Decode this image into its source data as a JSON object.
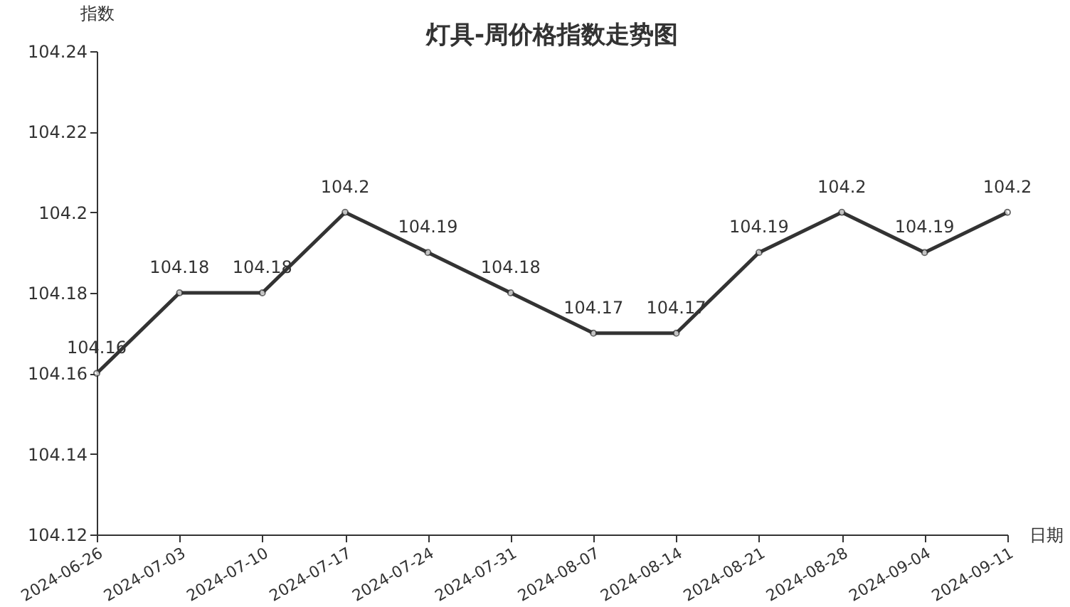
{
  "chart_data": {
    "type": "line",
    "title": "灯具-周价格指数走势图",
    "xlabel": "日期",
    "ylabel": "指数",
    "categories": [
      "2024-06-26",
      "2024-07-03",
      "2024-07-10",
      "2024-07-17",
      "2024-07-24",
      "2024-07-31",
      "2024-08-07",
      "2024-08-14",
      "2024-08-21",
      "2024-08-28",
      "2024-09-04",
      "2024-09-11"
    ],
    "series": [
      {
        "color": "#333333",
        "values": [
          104.16,
          104.18,
          104.18,
          104.2,
          104.19,
          104.18,
          104.17,
          104.17,
          104.19,
          104.2,
          104.19,
          104.2
        ]
      }
    ],
    "ylim": [
      104.12,
      104.24
    ],
    "yticks": [
      104.12,
      104.14,
      104.16,
      104.18,
      104.2,
      104.22,
      104.24
    ],
    "grid": false,
    "legend": false,
    "marker": "circle",
    "line_style": "solid",
    "data_labels": true
  }
}
